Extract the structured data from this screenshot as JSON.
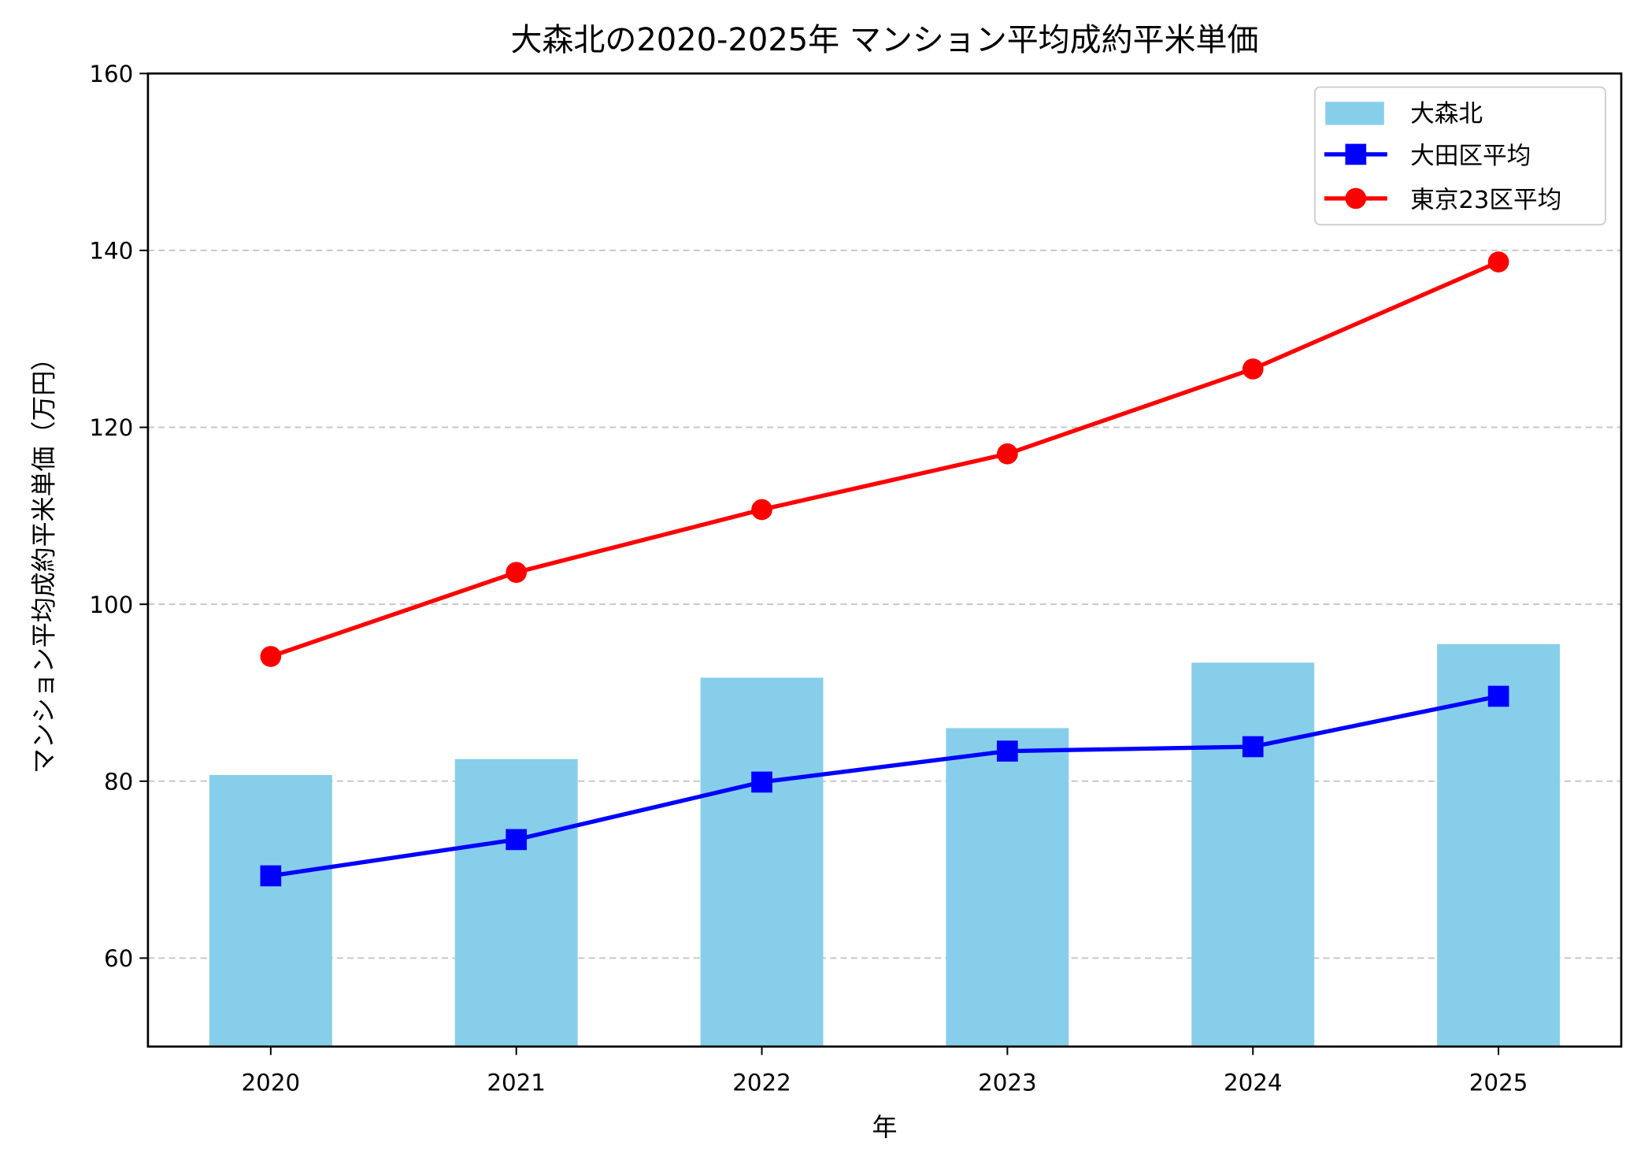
{
  "chart_data": {
    "type": "bar+line",
    "title": "大森北の2020-2025年 マンション平均成約平米単価",
    "xlabel": "年",
    "ylabel": "マンション平均成約平米単価（万円）",
    "categories": [
      "2020",
      "2021",
      "2022",
      "2023",
      "2024",
      "2025"
    ],
    "ylim": [
      50,
      160
    ],
    "yticks": [
      60,
      80,
      100,
      120,
      140,
      160
    ],
    "grid": "horizontal dashed",
    "legend_position": "top-right",
    "series": [
      {
        "name": "大森北",
        "type": "bar",
        "color": "#87CEEB",
        "values": [
          80.7,
          82.5,
          91.7,
          86.0,
          93.4,
          95.5
        ]
      },
      {
        "name": "大田区平均",
        "type": "line",
        "marker": "square",
        "color": "#0000FF",
        "values": [
          69.3,
          73.4,
          79.9,
          83.4,
          83.9,
          89.6
        ]
      },
      {
        "name": "東京23区平均",
        "type": "line",
        "marker": "circle",
        "color": "#FF0000",
        "values": [
          94.1,
          103.6,
          110.7,
          117.0,
          126.6,
          138.7
        ]
      }
    ]
  }
}
